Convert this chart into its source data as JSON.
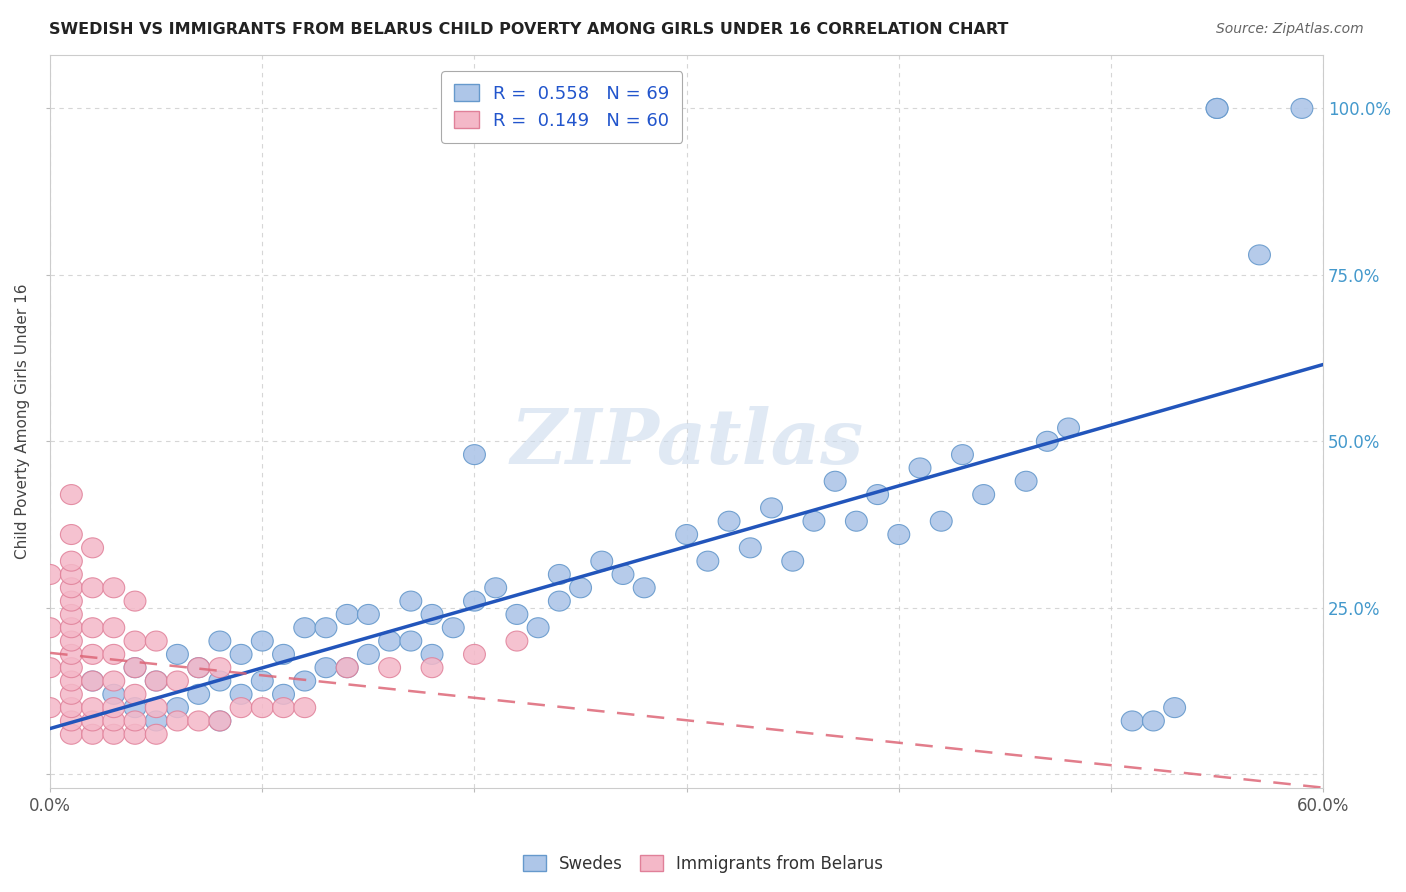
{
  "title": "SWEDISH VS IMMIGRANTS FROM BELARUS CHILD POVERTY AMONG GIRLS UNDER 16 CORRELATION CHART",
  "source": "Source: ZipAtlas.com",
  "ylabel": "Child Poverty Among Girls Under 16",
  "x_min": 0.0,
  "x_max": 0.6,
  "y_min": -0.02,
  "y_max": 1.08,
  "x_ticks": [
    0.0,
    0.1,
    0.2,
    0.3,
    0.4,
    0.5,
    0.6
  ],
  "x_tick_labels": [
    "0.0%",
    "",
    "",
    "",
    "",
    "",
    "60.0%"
  ],
  "y_ticks": [
    0.0,
    0.25,
    0.5,
    0.75,
    1.0
  ],
  "y_tick_labels": [
    "",
    "25.0%",
    "50.0%",
    "75.0%",
    "100.0%"
  ],
  "swedes_color": "#aec6e8",
  "immigrants_color": "#f4b8c8",
  "swedes_edge_color": "#6699cc",
  "immigrants_edge_color": "#e08099",
  "swedes_line_color": "#2255bb",
  "immigrants_line_color": "#dd6677",
  "R_swedes": 0.558,
  "N_swedes": 69,
  "R_immigrants": 0.149,
  "N_immigrants": 60,
  "watermark": "ZIPatlas",
  "background_color": "#ffffff",
  "grid_color": "#cccccc",
  "swedes_x": [
    0.02,
    0.03,
    0.04,
    0.04,
    0.05,
    0.05,
    0.06,
    0.06,
    0.07,
    0.07,
    0.08,
    0.08,
    0.08,
    0.09,
    0.09,
    0.1,
    0.1,
    0.11,
    0.11,
    0.12,
    0.12,
    0.13,
    0.13,
    0.14,
    0.14,
    0.15,
    0.15,
    0.16,
    0.17,
    0.17,
    0.18,
    0.18,
    0.19,
    0.2,
    0.21,
    0.22,
    0.23,
    0.24,
    0.24,
    0.25,
    0.26,
    0.27,
    0.28,
    0.3,
    0.31,
    0.32,
    0.33,
    0.34,
    0.35,
    0.36,
    0.37,
    0.38,
    0.39,
    0.4,
    0.41,
    0.42,
    0.43,
    0.44,
    0.46,
    0.47,
    0.48,
    0.51,
    0.52,
    0.53,
    0.55,
    0.55,
    0.57,
    0.59,
    0.2
  ],
  "swedes_y": [
    0.14,
    0.12,
    0.1,
    0.16,
    0.08,
    0.14,
    0.1,
    0.18,
    0.12,
    0.16,
    0.08,
    0.14,
    0.2,
    0.12,
    0.18,
    0.14,
    0.2,
    0.12,
    0.18,
    0.14,
    0.22,
    0.16,
    0.22,
    0.16,
    0.24,
    0.18,
    0.24,
    0.2,
    0.2,
    0.26,
    0.18,
    0.24,
    0.22,
    0.26,
    0.28,
    0.24,
    0.22,
    0.26,
    0.3,
    0.28,
    0.32,
    0.3,
    0.28,
    0.36,
    0.32,
    0.38,
    0.34,
    0.4,
    0.32,
    0.38,
    0.44,
    0.38,
    0.42,
    0.36,
    0.46,
    0.38,
    0.48,
    0.42,
    0.44,
    0.5,
    0.52,
    0.08,
    0.08,
    0.1,
    1.0,
    1.0,
    0.78,
    1.0,
    0.48
  ],
  "immigrants_x": [
    0.0,
    0.0,
    0.0,
    0.0,
    0.01,
    0.01,
    0.01,
    0.01,
    0.01,
    0.01,
    0.01,
    0.01,
    0.01,
    0.01,
    0.01,
    0.01,
    0.01,
    0.01,
    0.01,
    0.01,
    0.02,
    0.02,
    0.02,
    0.02,
    0.02,
    0.02,
    0.02,
    0.02,
    0.03,
    0.03,
    0.03,
    0.03,
    0.03,
    0.03,
    0.03,
    0.04,
    0.04,
    0.04,
    0.04,
    0.04,
    0.04,
    0.05,
    0.05,
    0.05,
    0.05,
    0.06,
    0.06,
    0.07,
    0.07,
    0.08,
    0.08,
    0.09,
    0.1,
    0.11,
    0.12,
    0.14,
    0.16,
    0.18,
    0.2,
    0.22
  ],
  "immigrants_y": [
    0.1,
    0.16,
    0.22,
    0.3,
    0.06,
    0.08,
    0.1,
    0.12,
    0.14,
    0.16,
    0.18,
    0.2,
    0.22,
    0.24,
    0.26,
    0.28,
    0.3,
    0.32,
    0.36,
    0.42,
    0.06,
    0.08,
    0.1,
    0.14,
    0.18,
    0.22,
    0.28,
    0.34,
    0.06,
    0.08,
    0.1,
    0.14,
    0.18,
    0.22,
    0.28,
    0.06,
    0.08,
    0.12,
    0.16,
    0.2,
    0.26,
    0.06,
    0.1,
    0.14,
    0.2,
    0.08,
    0.14,
    0.08,
    0.16,
    0.08,
    0.16,
    0.1,
    0.1,
    0.1,
    0.1,
    0.16,
    0.16,
    0.16,
    0.18,
    0.2
  ]
}
